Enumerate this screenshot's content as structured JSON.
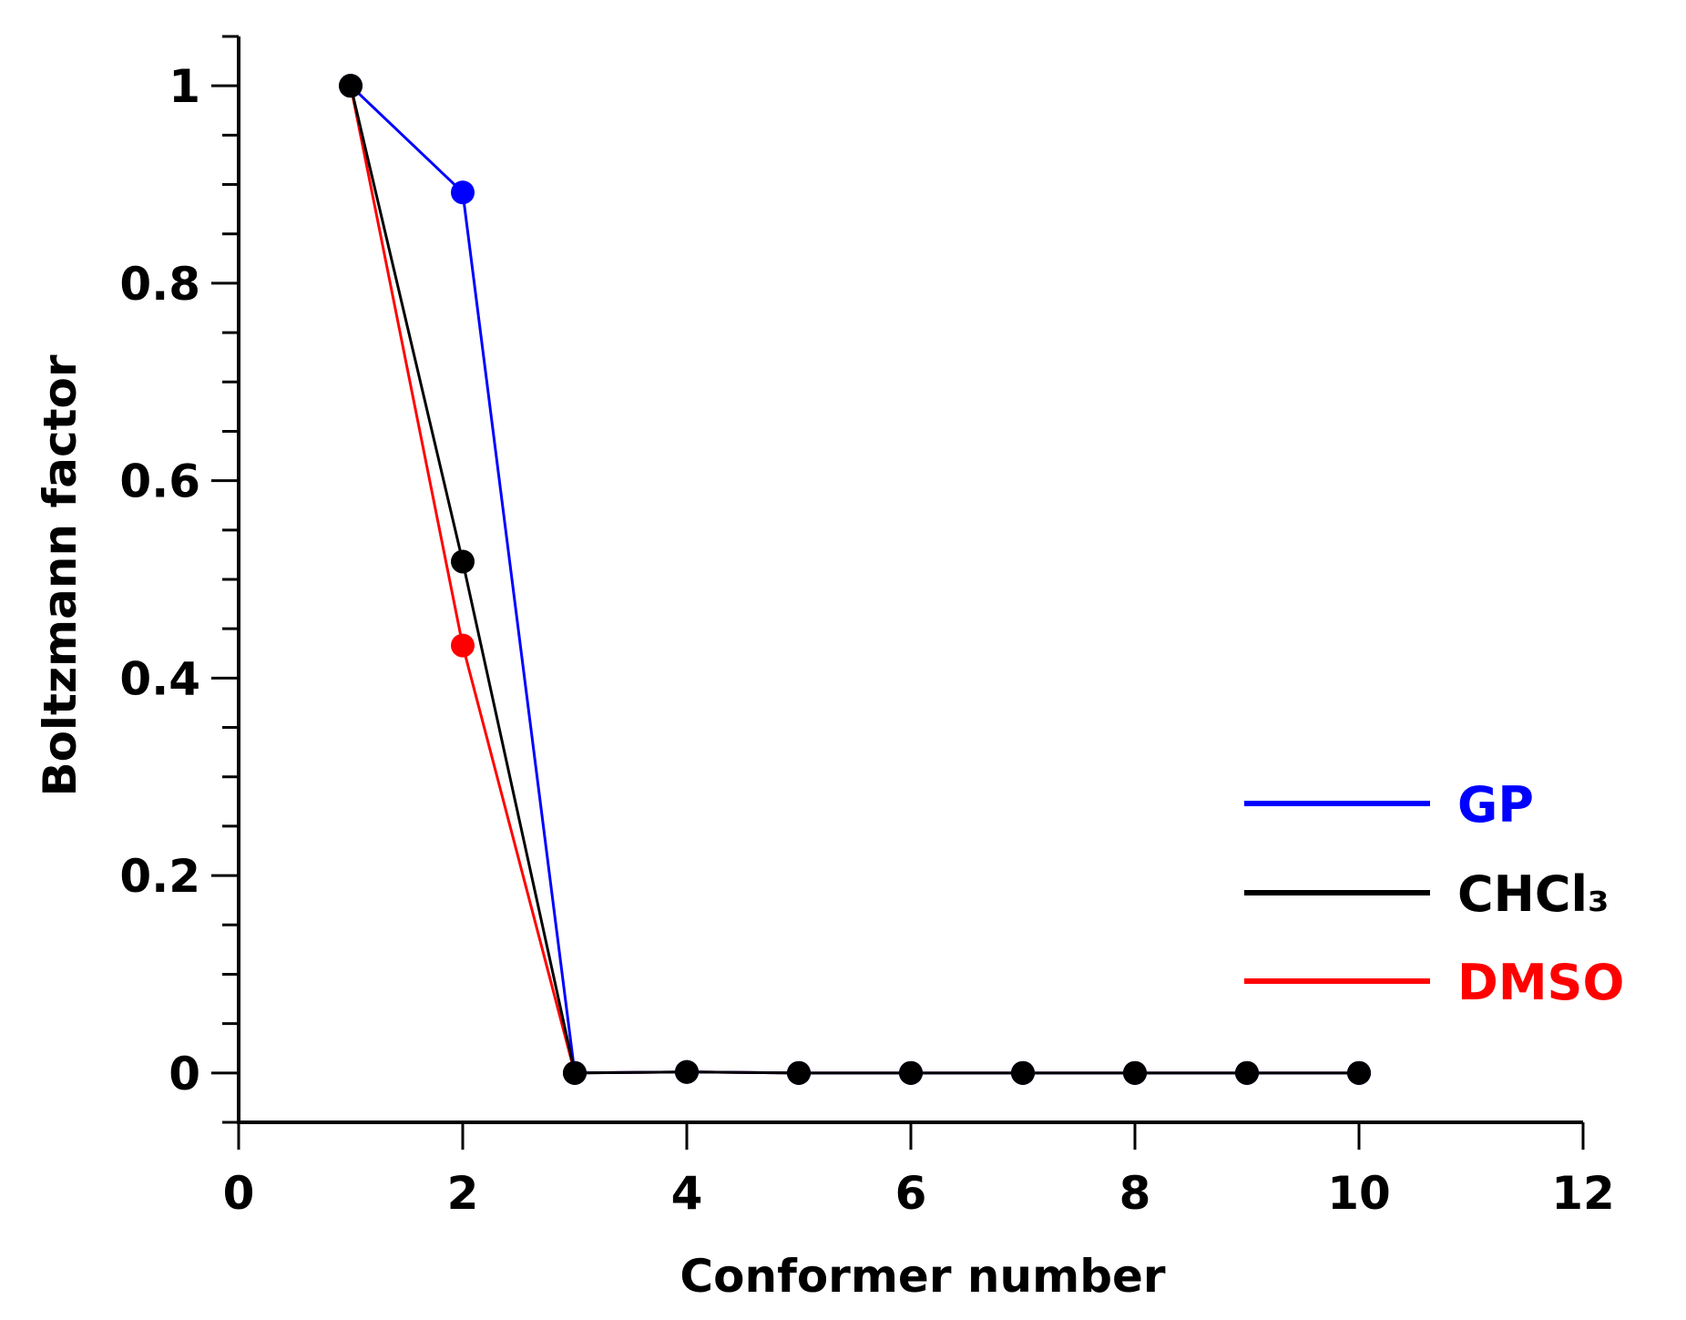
{
  "chart_data": {
    "type": "line",
    "title": "",
    "xlabel": "Conformer number",
    "ylabel": "Boltzmann factor",
    "xlim": [
      0,
      12
    ],
    "ylim": [
      -0.05,
      1.05
    ],
    "xticks": [
      "0",
      "2",
      "4",
      "6",
      "8",
      "10",
      "12"
    ],
    "yticks": [
      "0",
      "0.2",
      "0.4",
      "0.6",
      "0.8",
      "1"
    ],
    "grid": false,
    "legend_position": "bottom-right",
    "series": [
      {
        "name": "DMSO",
        "color": "#ff0000",
        "x": [
          1,
          2,
          3,
          4,
          5,
          6,
          7,
          8,
          9,
          10
        ],
        "y": [
          1.0,
          0.433,
          0.0,
          0.001,
          0.0,
          0.0,
          0.0,
          0.0,
          0.0,
          0.0
        ]
      },
      {
        "name": "GP",
        "color": "#0000ff",
        "x": [
          1,
          2,
          3,
          4,
          5,
          6,
          7,
          8,
          9,
          10
        ],
        "y": [
          1.0,
          0.892,
          0.0,
          0.001,
          0.0,
          0.0,
          0.0,
          0.0,
          0.0,
          0.0
        ]
      },
      {
        "name": "CHCl₃",
        "color": "#000000",
        "x": [
          1,
          2,
          3,
          4,
          5,
          6,
          7,
          8,
          9,
          10
        ],
        "y": [
          1.0,
          0.518,
          0.0,
          0.001,
          0.0,
          0.0,
          0.0,
          0.0,
          0.0,
          0.0
        ]
      }
    ],
    "legend": [
      {
        "label": "GP",
        "color": "#0000ff"
      },
      {
        "label": "CHCl₃",
        "color": "#000000"
      },
      {
        "label": "DMSO",
        "color": "#ff0000"
      }
    ]
  }
}
